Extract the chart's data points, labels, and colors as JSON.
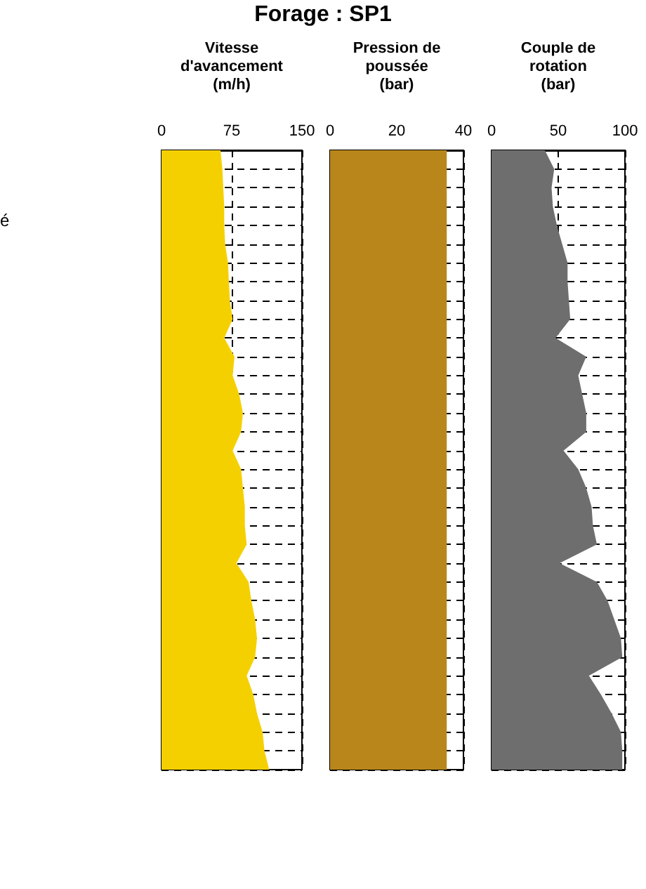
{
  "chart_data": [
    {
      "type": "area",
      "title": "Forage : SP1",
      "annotations": [
        "é"
      ],
      "xlabel": "Vitesse d'avancement (m/h)",
      "orientation": "horizontal",
      "tick_labels": "x",
      "grid": true,
      "xlim": [
        0,
        150
      ],
      "xticks": [
        0,
        75,
        150
      ],
      "categories": [
        null,
        null,
        null,
        null,
        null,
        null,
        null,
        null,
        null,
        null,
        null,
        null,
        null,
        null,
        null,
        null,
        null,
        null,
        null,
        null,
        null,
        null,
        null,
        null,
        null,
        null,
        null,
        null,
        null,
        null,
        null,
        null,
        null,
        null
      ],
      "series": [
        {
          "color": "#f5d000",
          "values": [
            63,
            65,
            66,
            67,
            67,
            68,
            71,
            72,
            73,
            76,
            67,
            78,
            76,
            83,
            87,
            85,
            76,
            85,
            87,
            89,
            89,
            91,
            80,
            93,
            96,
            100,
            102,
            100,
            91,
            98,
            102,
            108,
            110,
            115
          ]
        }
      ]
    },
    {
      "type": "area",
      "xlabel": "Pression de poussée (bar)",
      "orientation": "horizontal",
      "tick_labels": "x",
      "grid": true,
      "xlim": [
        0,
        40
      ],
      "xticks": [
        0,
        20,
        40
      ],
      "categories": [
        null,
        null,
        null,
        null,
        null,
        null,
        null,
        null,
        null,
        null,
        null,
        null,
        null,
        null,
        null,
        null,
        null,
        null,
        null,
        null,
        null,
        null,
        null,
        null,
        null,
        null,
        null,
        null,
        null,
        null,
        null,
        null,
        null,
        null
      ],
      "series": [
        {
          "color": "#b8861b",
          "values": [
            35,
            35,
            35,
            35,
            35,
            35,
            35,
            35,
            35,
            35,
            35,
            35,
            35,
            35,
            35,
            35,
            35,
            35,
            35,
            35,
            35,
            35,
            35,
            35,
            35,
            35,
            35,
            35,
            35,
            35,
            35,
            35,
            35,
            35
          ]
        }
      ]
    },
    {
      "type": "area",
      "xlabel": "Couple de rotation (bar)",
      "orientation": "horizontal",
      "tick_labels": "x",
      "grid": true,
      "xlim": [
        0,
        100
      ],
      "xticks": [
        0,
        50,
        100
      ],
      "categories": [
        null,
        null,
        null,
        null,
        null,
        null,
        null,
        null,
        null,
        null,
        null,
        null,
        null,
        null,
        null,
        null,
        null,
        null,
        null,
        null,
        null,
        null,
        null,
        null,
        null,
        null,
        null,
        null,
        null,
        null,
        null,
        null,
        null,
        null
      ],
      "series": [
        {
          "color": "#6e6e6e",
          "values": [
            40,
            47,
            45,
            46,
            49,
            53,
            57,
            57,
            58,
            59,
            48,
            71,
            65,
            68,
            71,
            71,
            54,
            65,
            71,
            75,
            76,
            79,
            51,
            79,
            87,
            92,
            97,
            98,
            73,
            82,
            90,
            97,
            98,
            98
          ]
        }
      ]
    }
  ]
}
